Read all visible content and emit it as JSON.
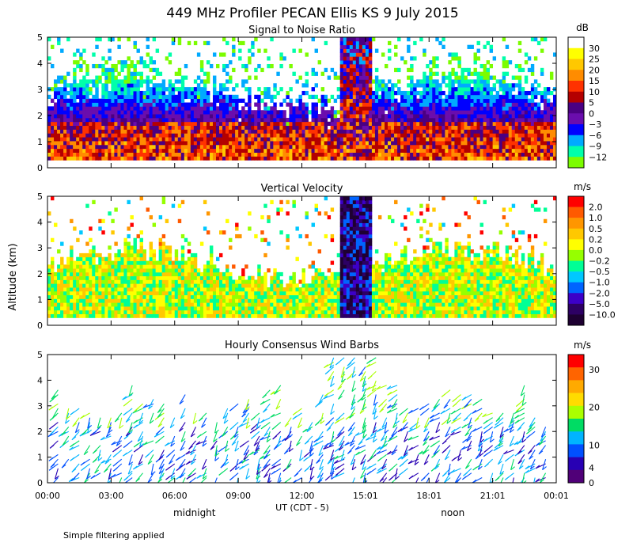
{
  "title": "449 MHz Profiler PECAN Ellis KS  9 July 2015",
  "footer_note": "Simple filtering applied",
  "ylabel": "Altitude (km)",
  "x_axis": {
    "ticks": [
      "00:00",
      "03:00",
      "06:00",
      "09:00",
      "12:00",
      "15:01",
      "18:01",
      "21:01",
      "00:01"
    ],
    "tick_hours": [
      0,
      3,
      6,
      9,
      12,
      15,
      18,
      21,
      24
    ],
    "label": "UT  (CDT - 5)",
    "midnight_label": "midnight",
    "noon_label": "noon",
    "midnight_hour": 6,
    "noon_hour": 18
  },
  "chart_data": [
    {
      "type": "heatmap",
      "title": "Signal to Noise Ratio",
      "xlabel": "UT  (CDT - 5)",
      "ylabel": "Altitude (km)",
      "xlim": [
        0,
        24
      ],
      "ylim": [
        0,
        5
      ],
      "yticks": [
        0,
        1,
        2,
        3,
        4,
        5
      ],
      "colorbar": {
        "unit": "dB",
        "labels": [
          "30",
          "25",
          "20",
          "15",
          "10",
          "5",
          "0",
          "−3",
          "−6",
          "−9",
          "−12"
        ],
        "colors": [
          "#ffffff",
          "#ffff00",
          "#ffc800",
          "#ff8c00",
          "#ff3200",
          "#b40000",
          "#4b0082",
          "#6a0dad",
          "#0000ff",
          "#00aaff",
          "#00ffaa",
          "#7cfc00"
        ]
      },
      "description_bands": [
        {
          "from_h": 0,
          "to_h": 24,
          "low_km": 0.3,
          "high_km": 2.0,
          "level": "5 to 15"
        },
        {
          "from_h": 13.8,
          "to_h": 15.2,
          "low_km": 0.3,
          "high_km": 5.0,
          "level": "10 to 20"
        }
      ]
    },
    {
      "type": "heatmap",
      "title": "Vertical Velocity",
      "xlabel": "UT  (CDT - 5)",
      "ylabel": "Altitude (km)",
      "xlim": [
        0,
        24
      ],
      "ylim": [
        0,
        5
      ],
      "yticks": [
        0,
        1,
        2,
        3,
        4,
        5
      ],
      "colorbar": {
        "unit": "m/s",
        "labels": [
          "2.0",
          "1.0",
          "0.5",
          "0.2",
          "0.0",
          "−0.2",
          "−0.5",
          "−1.0",
          "−2.0",
          "−5.0",
          "−10.0"
        ],
        "colors": [
          "#ff0000",
          "#ff5a00",
          "#ff9600",
          "#ffc800",
          "#ffff00",
          "#96ff00",
          "#00ff96",
          "#00c8ff",
          "#0064ff",
          "#3c00c8",
          "#2d0064",
          "#1e0032"
        ]
      }
    },
    {
      "type": "scatter",
      "title": "Hourly Consensus Wind Barbs",
      "xlabel": "UT  (CDT - 5)",
      "ylabel": "Altitude (km)",
      "xlim": [
        0,
        24
      ],
      "ylim": [
        0,
        5
      ],
      "yticks": [
        0,
        1,
        2,
        3,
        4,
        5
      ],
      "colorbar": {
        "unit": "m/s",
        "labels": [
          "30",
          "20",
          "10",
          "4",
          "0"
        ],
        "label_values": [
          30,
          20,
          10,
          4,
          0
        ],
        "colors": [
          "#ff0000",
          "#ff6400",
          "#ffaa00",
          "#ffdc00",
          "#aaff00",
          "#00dc64",
          "#00b4ff",
          "#0050ff",
          "#2800b4",
          "#500078"
        ]
      }
    }
  ]
}
